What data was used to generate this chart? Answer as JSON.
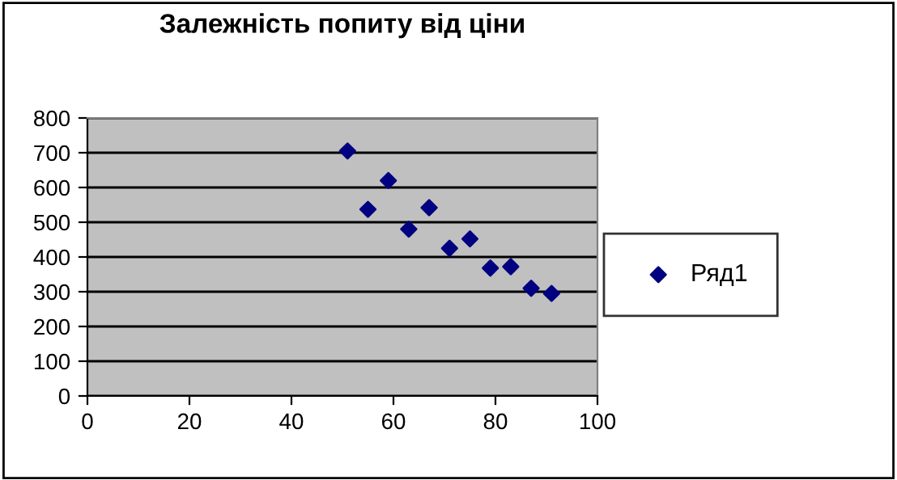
{
  "chart_data": {
    "type": "scatter",
    "title": "Залежність попиту від ціни",
    "x": [
      51,
      55,
      59,
      63,
      67,
      71,
      75,
      79,
      83,
      87,
      91
    ],
    "series": [
      {
        "name": "Ряд1",
        "color": "#000080",
        "values": [
          705,
          537,
          620,
          480,
          542,
          425,
          452,
          368,
          372,
          310,
          295
        ]
      }
    ],
    "xlim": [
      0,
      100
    ],
    "xticks": [
      0,
      20,
      40,
      60,
      80,
      100
    ],
    "ylim": [
      0,
      800
    ],
    "yticks": [
      0,
      100,
      200,
      300,
      400,
      500,
      600,
      700,
      800
    ],
    "grid": "y",
    "legend": "right",
    "marker": "diamond"
  }
}
